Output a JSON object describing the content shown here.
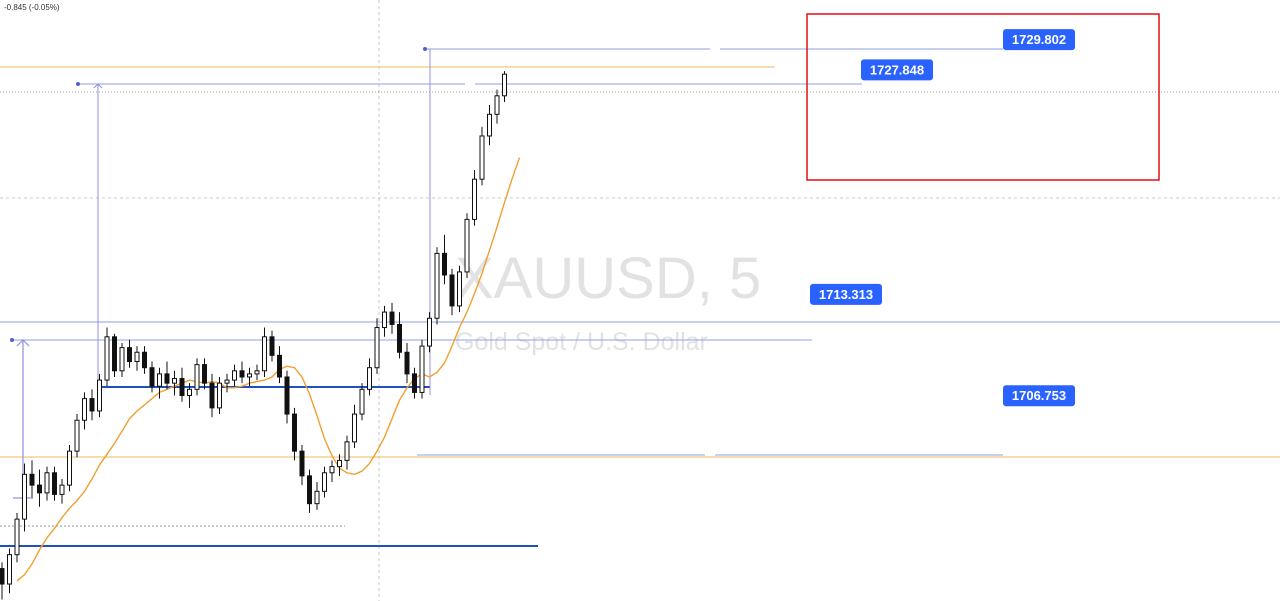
{
  "header": {
    "change_readout": "-0.845 (-0.05%)"
  },
  "watermark": {
    "symbol": "XAUUSD, 5",
    "description": "Gold Spot / U.S. Dollar"
  },
  "colors": {
    "candle": "#111111",
    "moving_average": "#f0a030",
    "level_line": "#8fa0e0",
    "thick_level": "#2050c0",
    "orange_level": "#f0b860",
    "tag_bg": "#2962ff",
    "highlight_box": "#e01010",
    "measure": "#9090e0"
  },
  "chart_data": {
    "type": "candlestick",
    "symbol": "XAUUSD",
    "timeframe": "5",
    "ylim": [
      1693.5,
      1732.4
    ],
    "series": [
      {
        "name": "",
        "ohlc": [
          [
            1695.6,
            1696.0,
            1693.6,
            1694.6
          ],
          [
            1694.6,
            1696.9,
            1694.0,
            1696.5
          ],
          [
            1696.5,
            1699.2,
            1696.0,
            1698.8
          ],
          [
            1698.8,
            1702.4,
            1698.0,
            1701.7
          ],
          [
            1701.7,
            1702.6,
            1700.2,
            1701.0
          ],
          [
            1701.0,
            1702.0,
            1699.6,
            1700.5
          ],
          [
            1700.5,
            1702.2,
            1700.0,
            1701.8
          ],
          [
            1701.8,
            1702.2,
            1700.0,
            1700.4
          ],
          [
            1700.4,
            1701.4,
            1699.8,
            1701.0
          ],
          [
            1701.0,
            1703.6,
            1700.6,
            1703.2
          ],
          [
            1703.2,
            1705.6,
            1702.8,
            1705.2
          ],
          [
            1705.2,
            1707.0,
            1704.6,
            1706.6
          ],
          [
            1706.6,
            1707.2,
            1705.2,
            1705.8
          ],
          [
            1705.8,
            1708.2,
            1705.4,
            1707.8
          ],
          [
            1707.8,
            1711.2,
            1707.4,
            1710.6
          ],
          [
            1710.6,
            1710.8,
            1708.0,
            1708.4
          ],
          [
            1708.4,
            1710.2,
            1708.0,
            1709.9
          ],
          [
            1709.9,
            1710.4,
            1708.6,
            1709.0
          ],
          [
            1709.0,
            1710.0,
            1708.4,
            1709.6
          ],
          [
            1709.6,
            1710.0,
            1708.2,
            1708.6
          ],
          [
            1708.6,
            1709.0,
            1707.0,
            1707.4
          ],
          [
            1707.4,
            1708.6,
            1706.6,
            1708.2
          ],
          [
            1708.2,
            1709.0,
            1707.2,
            1707.6
          ],
          [
            1707.6,
            1708.4,
            1706.8,
            1707.9
          ],
          [
            1707.9,
            1708.6,
            1706.4,
            1706.8
          ],
          [
            1706.8,
            1707.6,
            1706.0,
            1707.2
          ],
          [
            1707.2,
            1709.2,
            1706.8,
            1708.8
          ],
          [
            1708.8,
            1709.2,
            1707.2,
            1707.6
          ],
          [
            1707.6,
            1708.2,
            1705.4,
            1706.0
          ],
          [
            1706.0,
            1708.0,
            1705.6,
            1707.6
          ],
          [
            1707.6,
            1708.2,
            1707.0,
            1707.8
          ],
          [
            1707.8,
            1708.8,
            1707.4,
            1708.4
          ],
          [
            1708.4,
            1709.0,
            1707.6,
            1708.0
          ],
          [
            1708.0,
            1708.6,
            1707.4,
            1708.2
          ],
          [
            1708.2,
            1708.8,
            1707.8,
            1708.4
          ],
          [
            1708.4,
            1711.2,
            1708.0,
            1710.6
          ],
          [
            1710.6,
            1711.0,
            1709.0,
            1709.4
          ],
          [
            1709.4,
            1710.0,
            1707.6,
            1708.0
          ],
          [
            1708.0,
            1708.4,
            1705.0,
            1705.6
          ],
          [
            1705.6,
            1706.0,
            1702.6,
            1703.2
          ],
          [
            1703.2,
            1703.6,
            1701.0,
            1701.6
          ],
          [
            1701.6,
            1702.0,
            1699.2,
            1699.8
          ],
          [
            1699.8,
            1701.2,
            1699.4,
            1700.6
          ],
          [
            1700.6,
            1702.2,
            1700.2,
            1701.8
          ],
          [
            1701.8,
            1702.6,
            1701.2,
            1702.2
          ],
          [
            1702.2,
            1703.0,
            1701.6,
            1702.6
          ],
          [
            1702.6,
            1704.2,
            1702.0,
            1703.8
          ],
          [
            1703.8,
            1706.2,
            1703.4,
            1705.6
          ],
          [
            1705.6,
            1707.6,
            1705.2,
            1707.2
          ],
          [
            1707.2,
            1709.2,
            1706.8,
            1708.6
          ],
          [
            1708.6,
            1711.8,
            1708.2,
            1711.2
          ],
          [
            1711.2,
            1712.6,
            1710.6,
            1712.2
          ],
          [
            1712.2,
            1712.8,
            1710.8,
            1711.4
          ],
          [
            1711.4,
            1712.2,
            1709.2,
            1709.6
          ],
          [
            1709.6,
            1710.2,
            1707.6,
            1708.2
          ],
          [
            1708.2,
            1708.6,
            1706.6,
            1707.0
          ],
          [
            1707.0,
            1710.4,
            1706.6,
            1710.0
          ],
          [
            1710.0,
            1712.2,
            1709.6,
            1711.8
          ],
          [
            1711.8,
            1716.4,
            1711.4,
            1716.0
          ],
          [
            1716.0,
            1717.2,
            1714.0,
            1714.6
          ],
          [
            1714.6,
            1715.0,
            1712.0,
            1712.6
          ],
          [
            1712.6,
            1715.2,
            1712.2,
            1714.8
          ],
          [
            1714.8,
            1718.6,
            1714.4,
            1718.2
          ],
          [
            1718.2,
            1721.4,
            1717.8,
            1720.8
          ],
          [
            1720.8,
            1724.2,
            1720.4,
            1723.6
          ],
          [
            1723.6,
            1725.6,
            1723.0,
            1725.0
          ],
          [
            1725.0,
            1726.6,
            1724.4,
            1726.2
          ],
          [
            1726.2,
            1727.8,
            1725.8,
            1727.6
          ]
        ]
      },
      {
        "name": "",
        "type": "line",
        "values": [
          1694.8,
          1695.2,
          1695.9,
          1696.8,
          1697.6,
          1698.2,
          1698.9,
          1699.5,
          1700.0,
          1700.6,
          1701.4,
          1702.3,
          1703.0,
          1703.7,
          1704.5,
          1705.3,
          1705.8,
          1706.2,
          1706.6,
          1707.0,
          1707.2,
          1707.4,
          1707.6,
          1707.8,
          1707.7,
          1707.6,
          1707.7,
          1707.6,
          1707.3,
          1707.3,
          1707.4,
          1707.6,
          1707.7,
          1707.8,
          1708.0,
          1708.5,
          1708.7,
          1708.6,
          1708.0,
          1706.9,
          1705.5,
          1704.0,
          1702.9,
          1702.1,
          1701.8,
          1701.7,
          1701.9,
          1702.4,
          1703.2,
          1704.1,
          1705.3,
          1706.5,
          1707.3,
          1707.9,
          1708.2,
          1708.0,
          1708.3,
          1708.9,
          1710.0,
          1711.2,
          1712.2,
          1713.4,
          1714.7,
          1716.2,
          1717.7,
          1719.3,
          1720.8,
          1722.2
        ]
      }
    ],
    "horizontal_levels": [
      {
        "price": 1729.802,
        "label": "1729.802"
      },
      {
        "price": 1727.848,
        "label": "1727.848"
      },
      {
        "price": 1713.313,
        "label": "1713.313"
      },
      {
        "price": 1706.753,
        "label": "1706.753"
      }
    ]
  }
}
